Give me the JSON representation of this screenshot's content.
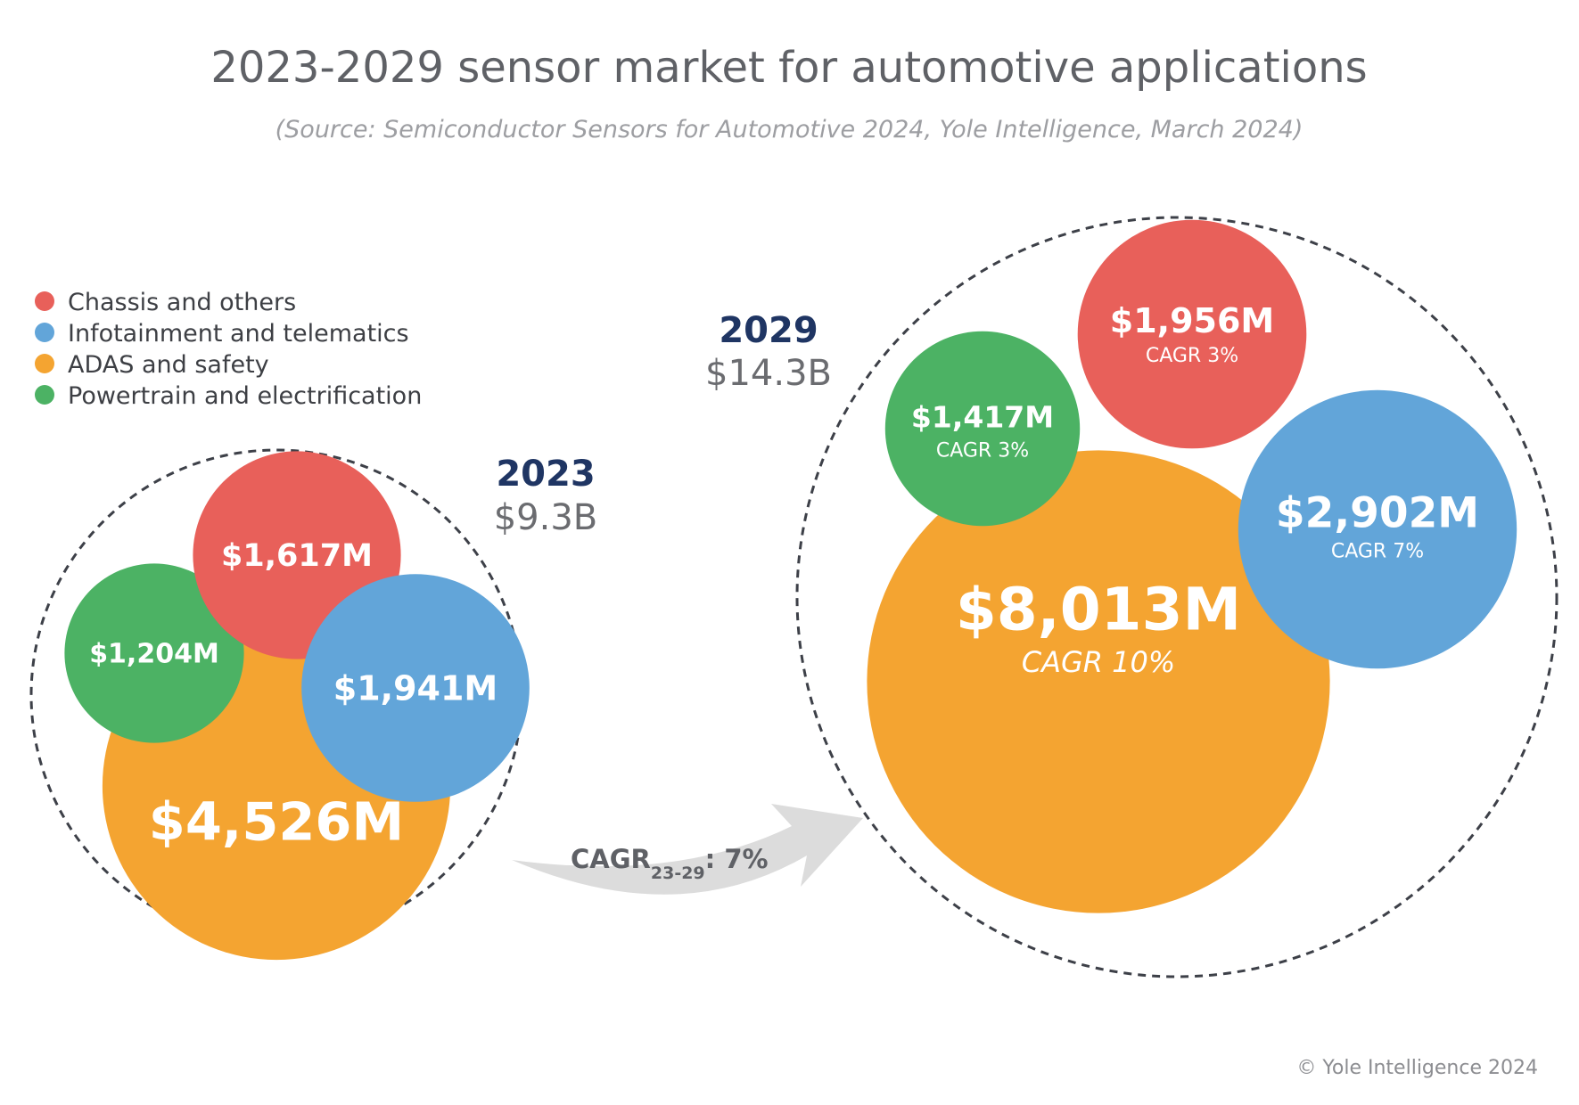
{
  "title": "2023-2029 sensor market for automotive applications",
  "subtitle": "(Source: Semiconductor Sensors for Automotive 2024, Yole Intelligence, March 2024)",
  "legend": [
    {
      "label": "Chassis and others",
      "color": "#e8605a"
    },
    {
      "label": "Infotainment and telematics",
      "color": "#62a5d9"
    },
    {
      "label": "ADAS and safety",
      "color": "#f4a431"
    },
    {
      "label": "Powertrain and electrification",
      "color": "#4cb264"
    }
  ],
  "years": [
    {
      "year": "2023",
      "total": "$9.3B"
    },
    {
      "year": "2029",
      "total": "$14.3B"
    }
  ],
  "arrow": {
    "label": "CAGR",
    "sub": "23-29",
    "value": ": 7%"
  },
  "copyright": "© Yole Intelligence 2024",
  "chart_data": {
    "type": "bubble",
    "unit": "$M",
    "years": [
      "2023",
      "2029"
    ],
    "totals": [
      "$9.3B",
      "$14.3B"
    ],
    "overall_cagr": "7%",
    "series": [
      {
        "name": "Chassis and others",
        "color": "#e8605a",
        "values": [
          1617,
          1956
        ],
        "labels": [
          "$1,617M",
          "$1,956M"
        ],
        "cagr": "CAGR 3%"
      },
      {
        "name": "Infotainment and telematics",
        "color": "#62a5d9",
        "values": [
          1941,
          2902
        ],
        "labels": [
          "$1,941M",
          "$2,902M"
        ],
        "cagr": "CAGR 7%"
      },
      {
        "name": "ADAS and safety",
        "color": "#f4a431",
        "values": [
          4526,
          8013
        ],
        "labels": [
          "$4,526M",
          "$8,013M"
        ],
        "cagr": "CAGR 10%"
      },
      {
        "name": "Powertrain and electrification",
        "color": "#4cb264",
        "values": [
          1204,
          1417
        ],
        "labels": [
          "$1,204M",
          "$1,417M"
        ],
        "cagr": "CAGR 3%"
      }
    ]
  }
}
